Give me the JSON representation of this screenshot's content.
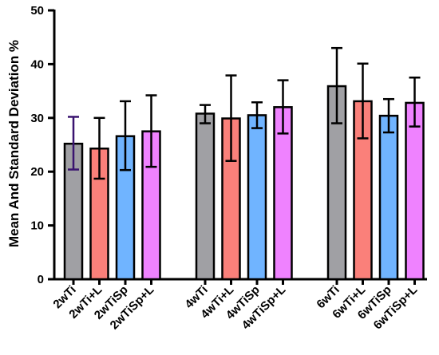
{
  "chart_data": {
    "type": "bar",
    "title": "",
    "xlabel": "",
    "ylabel": "Mean And Standard Deviation %",
    "ylim": [
      0,
      50
    ],
    "yticks": [
      0,
      10,
      20,
      30,
      40,
      50
    ],
    "grid": false,
    "categories": [
      "2wTi",
      "2wTi+L",
      "2wTiSp",
      "2wTiSp+L",
      "4wTi",
      "4wTi+L",
      "4wTiSp",
      "4wTiSp+L",
      "6wTi",
      "6wTi+L",
      "6wTiSp",
      "6wTiSp+L"
    ],
    "values": [
      25.2,
      24.3,
      26.6,
      27.5,
      30.8,
      29.9,
      30.5,
      32.0,
      35.9,
      33.1,
      30.4,
      32.8
    ],
    "error_low": [
      20.4,
      18.7,
      20.3,
      20.9,
      29.0,
      22.0,
      28.1,
      27.1,
      29.0,
      26.2,
      27.3,
      28.4
    ],
    "error_high": [
      30.2,
      30.0,
      33.1,
      34.2,
      32.4,
      37.9,
      32.9,
      37.0,
      43.0,
      40.1,
      33.5,
      37.5
    ],
    "bar_colors": [
      "#a0a0a4",
      "#fa807a",
      "#70b4ff",
      "#ef82ff",
      "#a0a0a4",
      "#fa807a",
      "#70b4ff",
      "#ef82ff",
      "#a0a0a4",
      "#fa807a",
      "#70b4ff",
      "#ef82ff"
    ],
    "error_colors": [
      "#3a1470",
      "#000000",
      "#000000",
      "#000000",
      "#000000",
      "#000000",
      "#000000",
      "#000000",
      "#000000",
      "#000000",
      "#000000",
      "#000000"
    ],
    "groups": [
      [
        0,
        1,
        2,
        3
      ],
      [
        4,
        5,
        6,
        7
      ],
      [
        8,
        9,
        10,
        11
      ]
    ]
  }
}
